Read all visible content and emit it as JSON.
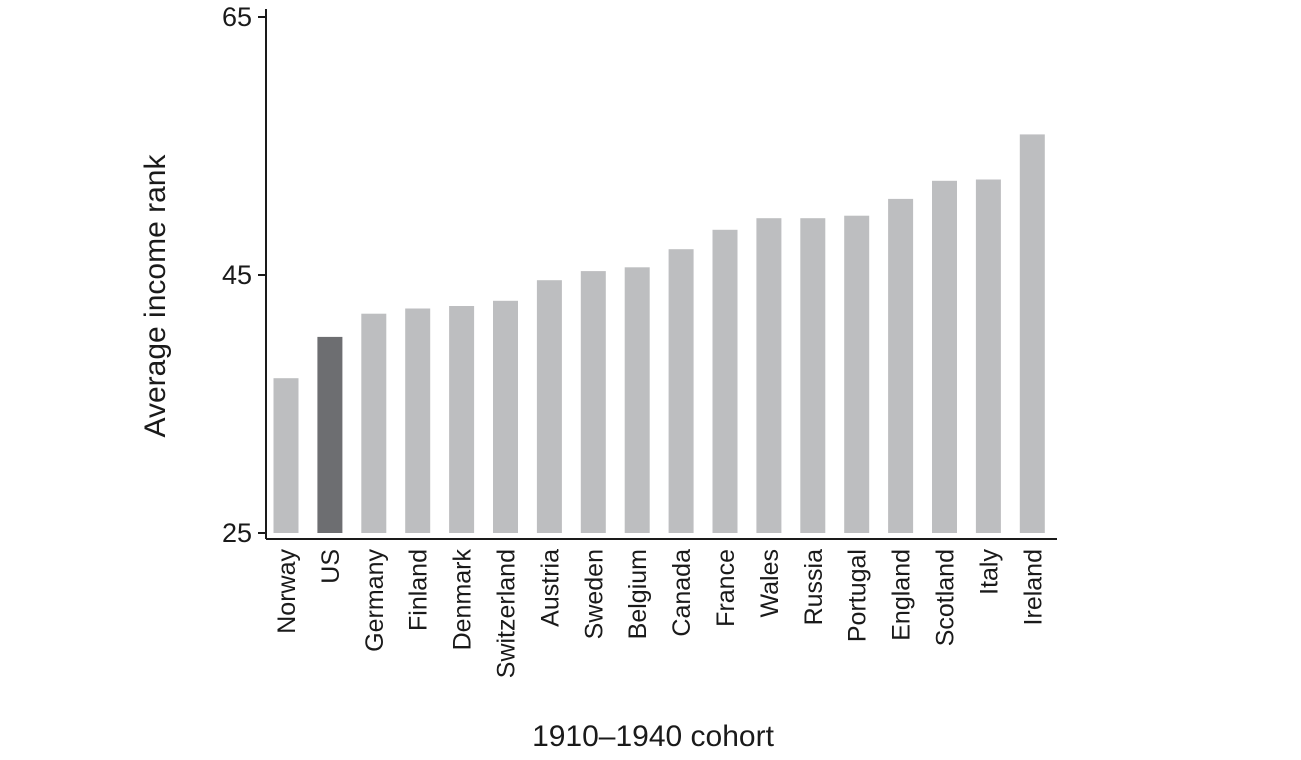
{
  "chart_data": {
    "type": "bar",
    "xlabel": "1910–1940 cohort",
    "ylabel": "Average income rank",
    "ylim": [
      25,
      65
    ],
    "yticks": [
      25,
      45,
      65
    ],
    "grid": false,
    "legend": "none",
    "categories": [
      "Norway",
      "US",
      "Germany",
      "Finland",
      "Denmark",
      "Switzerland",
      "Austria",
      "Sweden",
      "Belgium",
      "Canada",
      "France",
      "Wales",
      "Russia",
      "Portugal",
      "England",
      "Scotland",
      "Italy",
      "Ireland"
    ],
    "values": [
      37.0,
      40.2,
      42.0,
      42.4,
      42.6,
      43.0,
      44.6,
      45.3,
      45.6,
      47.0,
      48.5,
      49.4,
      49.4,
      49.6,
      50.9,
      52.3,
      52.4,
      55.9
    ],
    "highlight": "US",
    "colors": {
      "bar": "#bdbec0",
      "highlight_bar": "#6d6e71",
      "axis": "#1a1a1a",
      "text": "#1a1a1a"
    }
  }
}
